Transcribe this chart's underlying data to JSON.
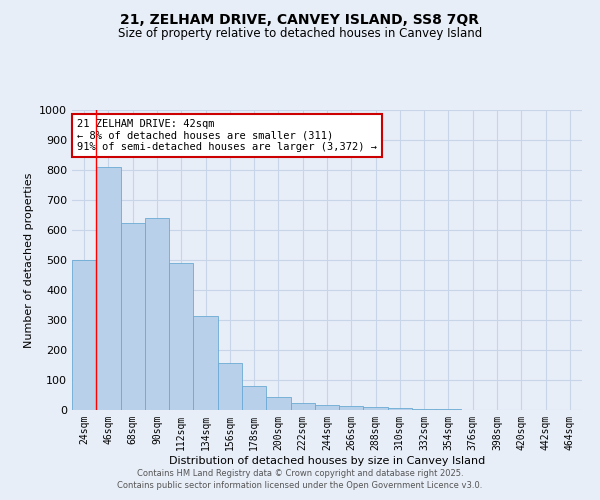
{
  "title": "21, ZELHAM DRIVE, CANVEY ISLAND, SS8 7QR",
  "subtitle": "Size of property relative to detached houses in Canvey Island",
  "xlabel": "Distribution of detached houses by size in Canvey Island",
  "ylabel": "Number of detached properties",
  "categories": [
    "24sqm",
    "46sqm",
    "68sqm",
    "90sqm",
    "112sqm",
    "134sqm",
    "156sqm",
    "178sqm",
    "200sqm",
    "222sqm",
    "244sqm",
    "266sqm",
    "288sqm",
    "310sqm",
    "332sqm",
    "354sqm",
    "376sqm",
    "398sqm",
    "420sqm",
    "442sqm",
    "464sqm"
  ],
  "values": [
    500,
    810,
    625,
    640,
    490,
    315,
    158,
    80,
    43,
    22,
    18,
    15,
    10,
    7,
    3,
    2,
    1,
    1,
    0,
    0,
    0
  ],
  "bar_color": "#b8d0ea",
  "bar_edge_color": "#6aaad4",
  "background_color": "#e8eef8",
  "grid_color": "#c8d4e8",
  "annotation_text": "21 ZELHAM DRIVE: 42sqm\n← 8% of detached houses are smaller (311)\n91% of semi-detached houses are larger (3,372) →",
  "annotation_box_color": "#ffffff",
  "annotation_box_edge": "#cc0000",
  "ylim": [
    0,
    1000
  ],
  "yticks": [
    0,
    100,
    200,
    300,
    400,
    500,
    600,
    700,
    800,
    900,
    1000
  ],
  "footer_line1": "Contains HM Land Registry data © Crown copyright and database right 2025.",
  "footer_line2": "Contains public sector information licensed under the Open Government Licence v3.0."
}
